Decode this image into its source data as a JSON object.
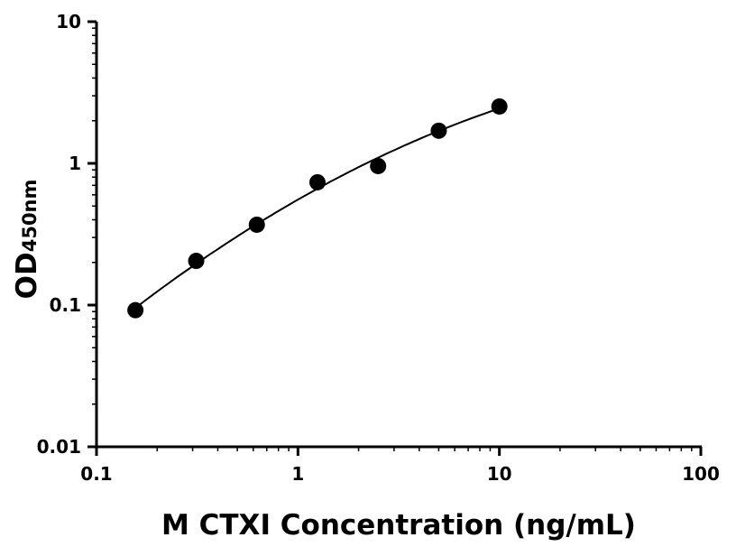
{
  "chart_data": {
    "type": "scatter",
    "title": "",
    "xlabel": "M CTXI Concentration (ng/mL)",
    "ylabel": "OD",
    "ylabel_subscript": "450nm",
    "xscale": "log",
    "yscale": "log",
    "xlim": [
      0.1,
      100
    ],
    "ylim": [
      0.01,
      10
    ],
    "xticks": [
      "0.1",
      "1",
      "10",
      "100"
    ],
    "yticks": [
      "0.01",
      "0.1",
      "1",
      "10"
    ],
    "grid": false,
    "fit_curve": true,
    "colors": {
      "points": "#000000",
      "curve": "#000000"
    },
    "points": [
      {
        "x": 0.156,
        "y": 0.092
      },
      {
        "x": 0.3125,
        "y": 0.205
      },
      {
        "x": 0.625,
        "y": 0.369
      },
      {
        "x": 1.25,
        "y": 0.735
      },
      {
        "x": 2.5,
        "y": 0.957
      },
      {
        "x": 5,
        "y": 1.7
      },
      {
        "x": 10,
        "y": 2.52
      }
    ]
  }
}
